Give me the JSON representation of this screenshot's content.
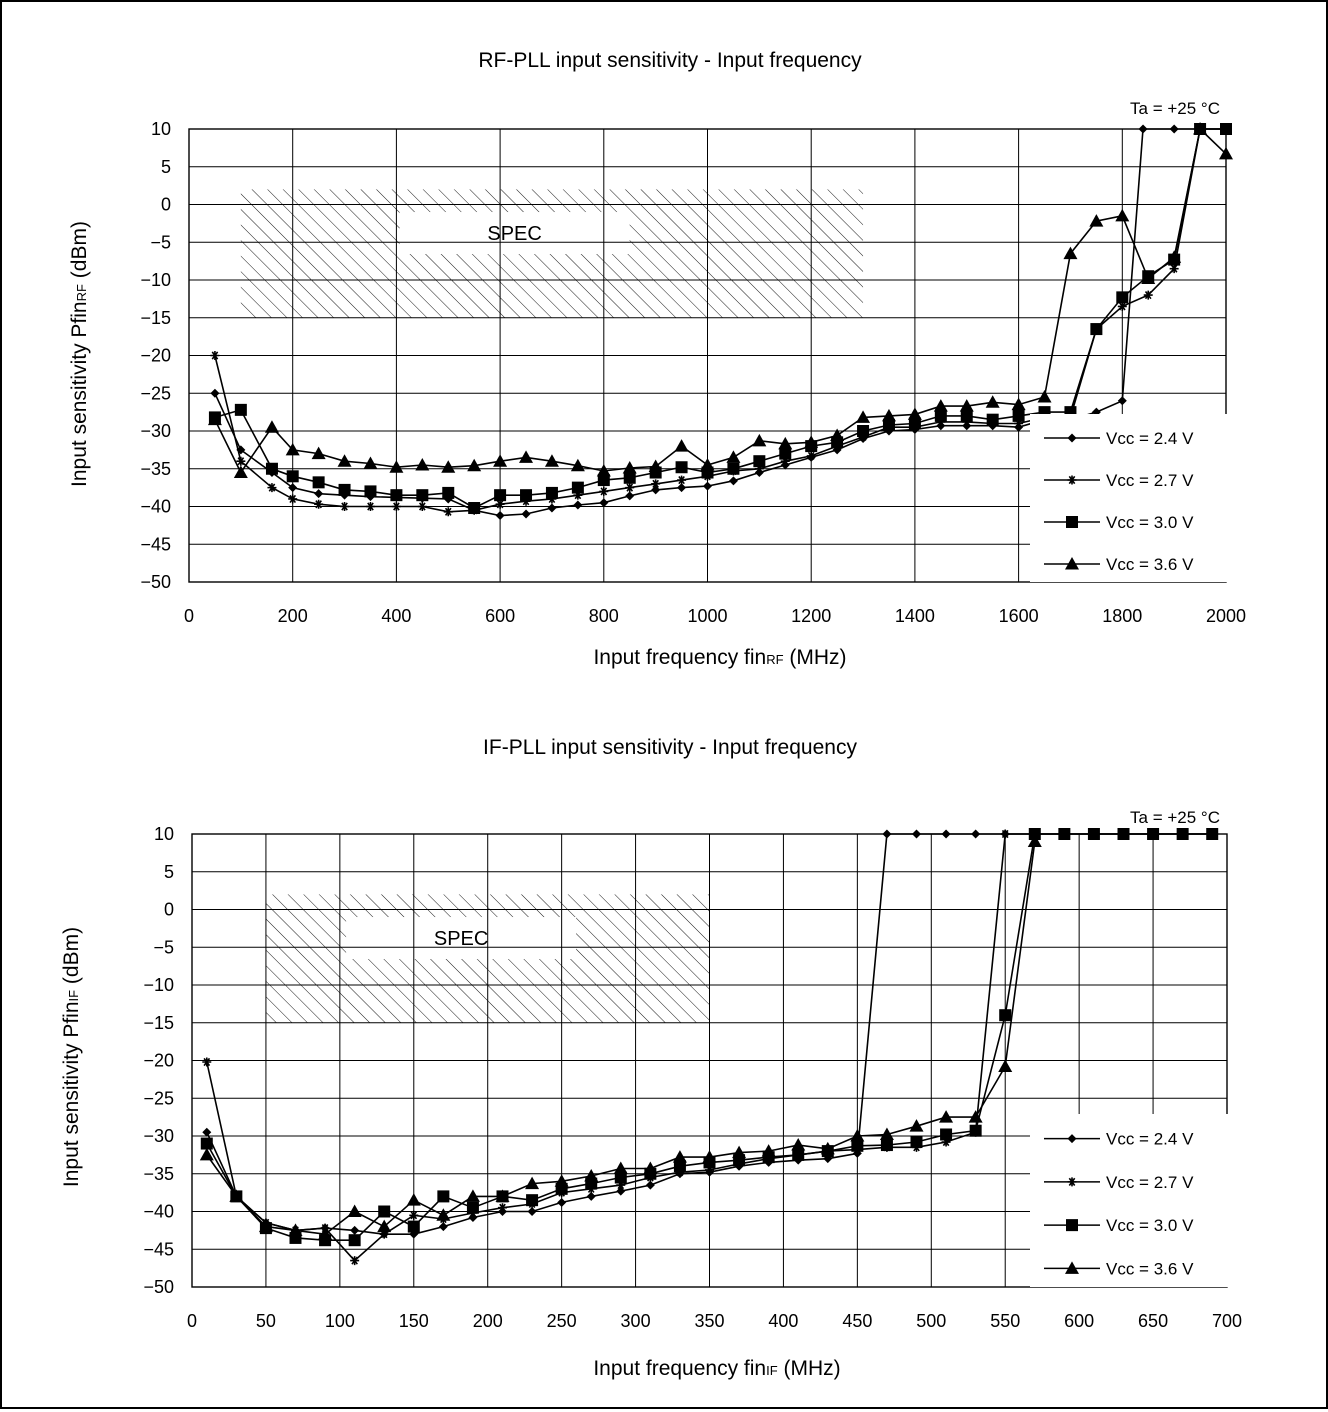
{
  "chart_data": [
    {
      "type": "line",
      "title": "RF-PLL input sensitivity - Input frequency",
      "annotation": "Ta = +25 °C",
      "ylabel": "Input sensitivity Pfin",
      "ylabel_sub": "RF",
      "ylabel_unit": " (dBm)",
      "xlabel": "Input frequency fin",
      "xlabel_sub": "RF",
      "xlabel_unit": " (MHz)",
      "xlim": [
        0,
        2000
      ],
      "ylim": [
        -50,
        10
      ],
      "xticks": [
        0,
        200,
        400,
        600,
        800,
        1000,
        1200,
        1400,
        1600,
        1800,
        2000
      ],
      "yticks": [
        10,
        5,
        0,
        -5,
        -10,
        -15,
        -20,
        -25,
        -30,
        -35,
        -40,
        -45,
        -50
      ],
      "grid": true,
      "legend_position": "bottom-right",
      "spec_region": {
        "label": "SPEC",
        "x": [
          100,
          1300
        ],
        "y": [
          -15,
          2
        ]
      },
      "series": [
        {
          "name": "Vcc = 2.4 V",
          "marker": "diamond",
          "x": [
            50,
            100,
            160,
            200,
            250,
            300,
            350,
            400,
            450,
            500,
            550,
            600,
            650,
            700,
            750,
            800,
            850,
            900,
            950,
            1000,
            1050,
            1100,
            1150,
            1200,
            1250,
            1300,
            1350,
            1400,
            1450,
            1500,
            1550,
            1600,
            1650,
            1700,
            1750,
            1800,
            1840,
            1900,
            2000
          ],
          "y": [
            -25,
            -32.5,
            -35.5,
            -37.5,
            -38.3,
            -38.5,
            -38.7,
            -38.8,
            -38.9,
            -39,
            -40.5,
            -41.2,
            -41,
            -40.2,
            -39.8,
            -39.5,
            -38.6,
            -37.8,
            -37.5,
            -37.3,
            -36.6,
            -35.5,
            -34.5,
            -33.5,
            -32.5,
            -31,
            -30,
            -29.8,
            -29.3,
            -29.3,
            -29.3,
            -29.5,
            -28.5,
            -28.5,
            -27.5,
            -26,
            10,
            10,
            10
          ]
        },
        {
          "name": "Vcc = 2.7 V",
          "marker": "asterisk",
          "x": [
            50,
            100,
            160,
            200,
            250,
            300,
            350,
            400,
            450,
            500,
            550,
            600,
            650,
            700,
            750,
            800,
            850,
            900,
            950,
            1000,
            1050,
            1100,
            1150,
            1200,
            1250,
            1300,
            1350,
            1400,
            1450,
            1500,
            1550,
            1600,
            1650,
            1700,
            1750,
            1800,
            1850,
            1900,
            1950,
            2000
          ],
          "y": [
            -20,
            -34,
            -37.5,
            -39,
            -39.7,
            -40,
            -40,
            -40,
            -40,
            -40.7,
            -40.5,
            -39.7,
            -39.3,
            -39,
            -38.5,
            -38,
            -37.5,
            -37,
            -36.5,
            -36,
            -35.3,
            -35,
            -34,
            -33.3,
            -32,
            -30.8,
            -29.5,
            -29.5,
            -28.8,
            -28.8,
            -29,
            -29,
            -28.2,
            -28.2,
            -16.5,
            -13.5,
            -12,
            -8.5,
            10,
            10
          ]
        },
        {
          "name": "Vcc = 3.0 V",
          "marker": "square",
          "x": [
            50,
            100,
            160,
            200,
            250,
            300,
            350,
            400,
            450,
            500,
            550,
            600,
            650,
            700,
            750,
            800,
            850,
            900,
            950,
            1000,
            1050,
            1100,
            1150,
            1200,
            1250,
            1300,
            1350,
            1400,
            1450,
            1500,
            1550,
            1600,
            1650,
            1700,
            1750,
            1800,
            1850,
            1900,
            1950,
            2000
          ],
          "y": [
            -28.2,
            -27.2,
            -35,
            -36,
            -36.8,
            -37.8,
            -38,
            -38.5,
            -38.5,
            -38.2,
            -40.2,
            -38.5,
            -38.5,
            -38.2,
            -37.5,
            -36.5,
            -36.2,
            -35.5,
            -34.8,
            -35.5,
            -35,
            -34,
            -33,
            -32,
            -31.5,
            -30,
            -29.2,
            -29,
            -28,
            -28,
            -28.5,
            -28,
            -27.5,
            -27.5,
            -16.5,
            -12.3,
            -9.5,
            -7.3,
            10,
            10
          ]
        },
        {
          "name": "Vcc = 3.6 V",
          "marker": "triangle",
          "x": [
            50,
            100,
            160,
            200,
            250,
            300,
            350,
            400,
            450,
            500,
            550,
            600,
            650,
            700,
            750,
            800,
            850,
            900,
            950,
            1000,
            1050,
            1100,
            1150,
            1200,
            1250,
            1300,
            1350,
            1400,
            1450,
            1500,
            1550,
            1600,
            1650,
            1700,
            1750,
            1800,
            1850,
            1900,
            1950,
            2000
          ],
          "y": [
            -28.5,
            -35.5,
            -29.5,
            -32.5,
            -33,
            -34,
            -34.3,
            -34.8,
            -34.5,
            -34.8,
            -34.6,
            -34,
            -33.5,
            -34,
            -34.6,
            -35.3,
            -34.9,
            -34.7,
            -32,
            -34.5,
            -33.5,
            -31.3,
            -31.7,
            -31.5,
            -30.6,
            -28.2,
            -28,
            -27.8,
            -26.7,
            -26.7,
            -26.2,
            -26.5,
            -25.5,
            -6.5,
            -2.2,
            -1.5,
            -9.8,
            -7,
            10,
            6.7
          ]
        }
      ]
    },
    {
      "type": "line",
      "title": "IF-PLL input sensitivity - Input frequency",
      "annotation": "Ta = +25 °C",
      "ylabel": "Input sensitivity Pfin",
      "ylabel_sub": "IF",
      "ylabel_unit": " (dBm)",
      "xlabel": "Input frequency fin",
      "xlabel_sub": "IF",
      "xlabel_unit": " (MHz)",
      "xlim": [
        0,
        700
      ],
      "ylim": [
        -50,
        10
      ],
      "xticks": [
        0,
        50,
        100,
        150,
        200,
        250,
        300,
        350,
        400,
        450,
        500,
        550,
        600,
        650,
        700
      ],
      "yticks": [
        10,
        5,
        0,
        -5,
        -10,
        -15,
        -20,
        -25,
        -30,
        -35,
        -40,
        -45,
        -50
      ],
      "grid": true,
      "legend_position": "bottom-right",
      "spec_region": {
        "label": "SPEC",
        "x": [
          50,
          350
        ],
        "y": [
          -15,
          2
        ]
      },
      "series": [
        {
          "name": "Vcc = 2.4 V",
          "marker": "diamond",
          "x": [
            10,
            30,
            50,
            70,
            90,
            110,
            130,
            150,
            170,
            190,
            210,
            230,
            250,
            270,
            290,
            310,
            330,
            350,
            370,
            390,
            410,
            430,
            450,
            470,
            490,
            510,
            530,
            550,
            570,
            590,
            610,
            630,
            650,
            670,
            690
          ],
          "y": [
            -29.5,
            -38,
            -41.5,
            -42.5,
            -42.2,
            -42.5,
            -43,
            -43,
            -42,
            -40.8,
            -40,
            -40,
            -38.8,
            -38,
            -37.3,
            -36.5,
            -35,
            -34.8,
            -34,
            -33.5,
            -33.2,
            -33,
            -32.3,
            10,
            10,
            10,
            10,
            10,
            10,
            10,
            10,
            10,
            10,
            10,
            10
          ]
        },
        {
          "name": "Vcc = 2.7 V",
          "marker": "asterisk",
          "x": [
            10,
            30,
            50,
            70,
            90,
            110,
            130,
            150,
            170,
            190,
            210,
            230,
            250,
            270,
            290,
            310,
            330,
            350,
            370,
            390,
            410,
            430,
            450,
            470,
            490,
            510,
            530,
            550,
            570,
            590,
            610,
            630,
            650,
            670,
            690
          ],
          "y": [
            -20.2,
            -38,
            -41.5,
            -42.5,
            -42.2,
            -46.5,
            -43,
            -40.5,
            -41,
            -40.2,
            -39.5,
            -39,
            -37.5,
            -37,
            -36.5,
            -35.5,
            -34.8,
            -34.5,
            -33.7,
            -33,
            -32.5,
            -32,
            -31.8,
            -31.5,
            -31.5,
            -30.8,
            -29.5,
            10,
            10,
            10,
            10,
            10,
            10,
            10,
            10
          ]
        },
        {
          "name": "Vcc = 3.0 V",
          "marker": "square",
          "x": [
            10,
            30,
            50,
            70,
            90,
            110,
            130,
            150,
            170,
            190,
            210,
            230,
            250,
            270,
            290,
            310,
            330,
            350,
            370,
            390,
            410,
            430,
            450,
            470,
            490,
            510,
            530,
            550,
            570,
            590,
            610,
            630,
            650,
            670,
            690
          ],
          "y": [
            -31,
            -38,
            -42.2,
            -43.5,
            -43.8,
            -43.8,
            -40,
            -42,
            -38,
            -39.5,
            -38,
            -38.5,
            -37,
            -36.3,
            -35.5,
            -35,
            -34,
            -33.5,
            -33.2,
            -32.8,
            -32.5,
            -32,
            -31.3,
            -31.2,
            -30.8,
            -29.8,
            -29.3,
            -14,
            10,
            10,
            10,
            10,
            10,
            10,
            10
          ]
        },
        {
          "name": "Vcc = 3.6 V",
          "marker": "triangle",
          "x": [
            10,
            30,
            50,
            70,
            90,
            110,
            130,
            150,
            170,
            190,
            210,
            230,
            250,
            270,
            290,
            310,
            330,
            350,
            370,
            390,
            410,
            430,
            450,
            470,
            490,
            510,
            530,
            550,
            570
          ],
          "y": [
            -32.5,
            -38,
            -42,
            -42.5,
            -43,
            -40,
            -42,
            -38.5,
            -40.5,
            -38,
            -38,
            -36.3,
            -36,
            -35.3,
            -34.3,
            -34.3,
            -32.8,
            -32.8,
            -32.2,
            -32,
            -31.2,
            -31.7,
            -30,
            -29.8,
            -28.7,
            -27.5,
            -27.5,
            -20.8,
            9
          ]
        }
      ]
    }
  ]
}
